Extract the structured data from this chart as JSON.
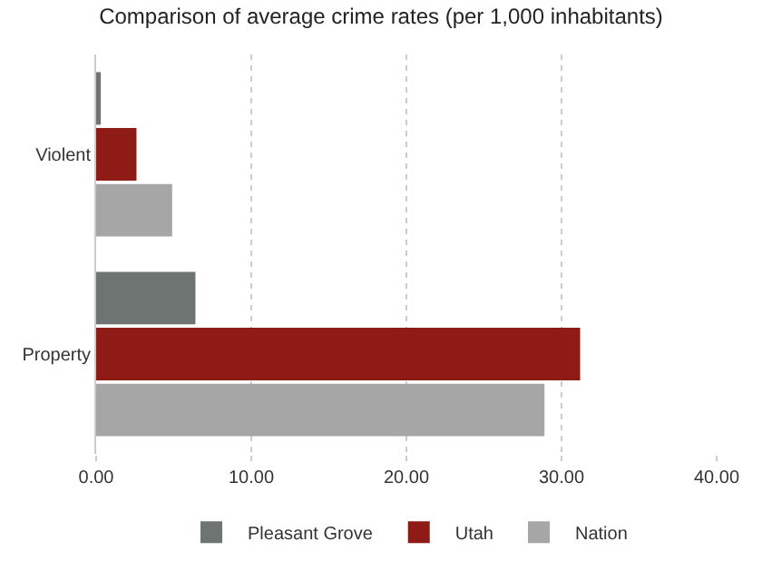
{
  "chart_data": {
    "type": "bar",
    "orientation": "horizontal",
    "title": "Comparison of average crime rates (per 1,000 inhabitants)",
    "categories": [
      "Violent",
      "Property"
    ],
    "series": [
      {
        "name": "Pleasant Grove",
        "color": "#6e7471",
        "values": [
          0.3,
          6.4
        ]
      },
      {
        "name": "Utah",
        "color": "#8e1b16",
        "values": [
          2.6,
          31.2
        ]
      },
      {
        "name": "Nation",
        "color": "#a6a6a6",
        "values": [
          4.9,
          28.9
        ]
      }
    ],
    "xlim": [
      0,
      40
    ],
    "xticks": [
      {
        "value": 0,
        "label": "0.00"
      },
      {
        "value": 10,
        "label": "10.00"
      },
      {
        "value": 20,
        "label": "20.00"
      },
      {
        "value": 30,
        "label": "30.00"
      },
      {
        "value": 40,
        "label": "40.00"
      }
    ],
    "grid": "x",
    "legend": "bottom"
  }
}
